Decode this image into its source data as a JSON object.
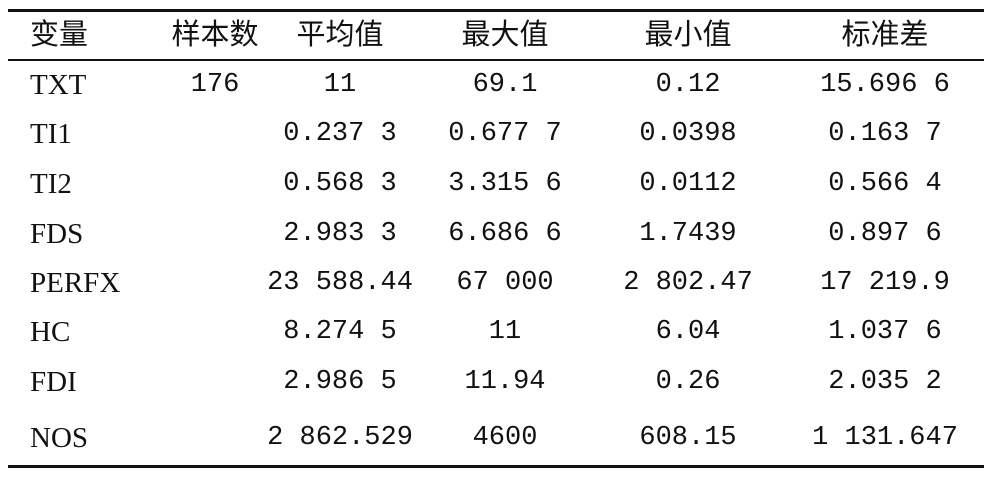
{
  "table": {
    "header": [
      "变量",
      "样本数",
      "平均值",
      "最大值",
      "最小值",
      "标准差"
    ],
    "rows": [
      {
        "variable": "TXT",
        "n": "176",
        "mean": "11",
        "max": "69.1",
        "min": "0.12",
        "sd": "15.696 6"
      },
      {
        "variable": "TI1",
        "mean": "0.237 3",
        "max": "0.677 7",
        "min": "0.0398",
        "sd": "0.163 7"
      },
      {
        "variable": "TI2",
        "mean": "0.568 3",
        "max": "3.315 6",
        "min": "0.0112",
        "sd": "0.566 4"
      },
      {
        "variable": "FDS",
        "mean": "2.983 3",
        "max": "6.686 6",
        "min": "1.7439",
        "sd": "0.897 6"
      },
      {
        "variable": "PERFX",
        "mean": "23 588.44",
        "max": "67 000",
        "min": "2 802.47",
        "sd": "17 219.9"
      },
      {
        "variable": "HC",
        "mean": "8.274 5",
        "max": "11",
        "min": "6.04",
        "sd": "1.037 6"
      },
      {
        "variable": "FDI",
        "mean": "2.986 5",
        "max": "11.94",
        "min": "0.26",
        "sd": "2.035 2"
      },
      {
        "variable": "NOS",
        "mean": "2 862.529",
        "max": "4600",
        "min": "608.15",
        "sd": "1 131.647"
      }
    ]
  }
}
